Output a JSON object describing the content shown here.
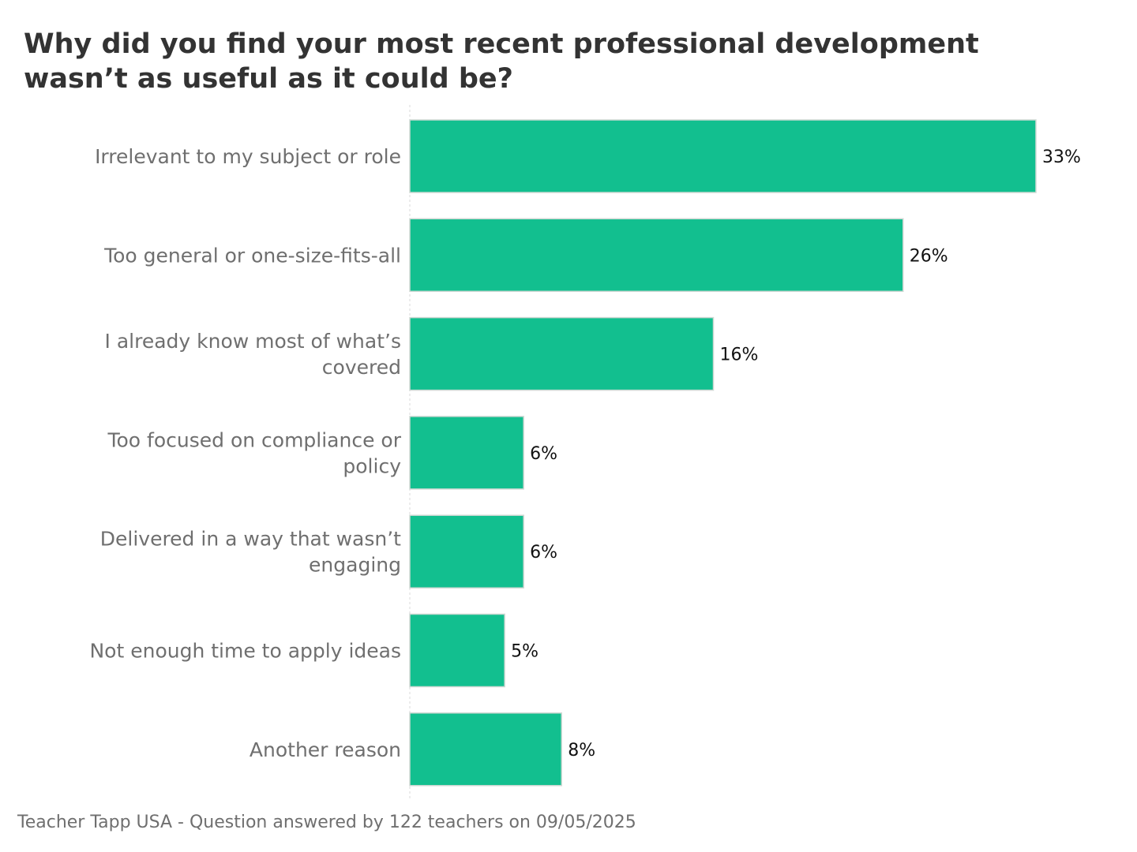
{
  "chart_data": {
    "type": "bar",
    "orientation": "horizontal",
    "title_lines": [
      "Why did you find your most recent professional development",
      "wasn’t as useful as it could be?"
    ],
    "categories": [
      [
        "Irrelevant to my subject or role"
      ],
      [
        "Too general or one-size-fits-all"
      ],
      [
        "I already know most of what’s",
        "covered"
      ],
      [
        "Too focused on compliance or",
        "policy"
      ],
      [
        "Delivered in a way that wasn’t",
        "engaging"
      ],
      [
        "Not enough time to apply ideas"
      ],
      [
        "Another reason"
      ]
    ],
    "values": [
      33,
      26,
      16,
      6,
      6,
      5,
      8
    ],
    "value_labels": [
      "33%",
      "26%",
      "16%",
      "6%",
      "6%",
      "5%",
      "8%"
    ],
    "unit": "%",
    "xlim": [
      0,
      33
    ],
    "grid": false,
    "bar_color": "#12bf8f"
  },
  "footer": "Teacher Tapp USA - Question answered by 122 teachers on 09/05/2025"
}
